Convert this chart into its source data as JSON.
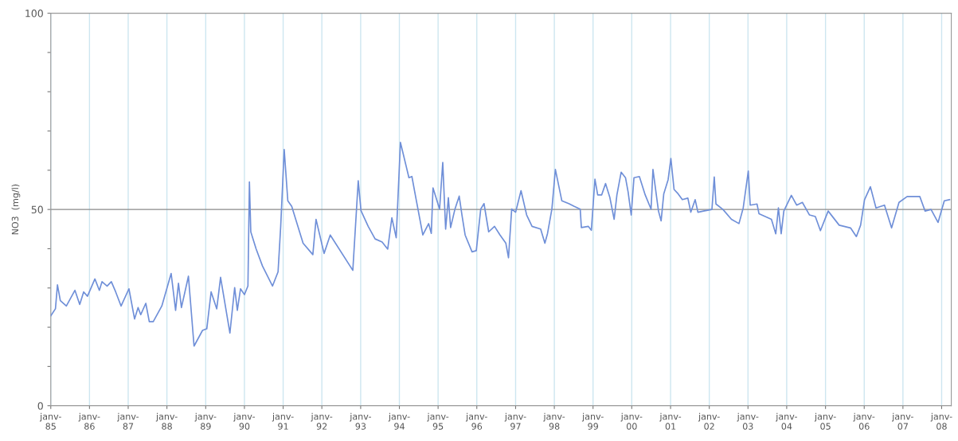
{
  "chart_data": {
    "type": "line",
    "ylabel": "NO3  (mg/l)",
    "xlim": [
      "1985-01-01",
      "2008-04-01"
    ],
    "ylim": [
      0,
      100
    ],
    "xticks": [
      {
        "value": "1985-01",
        "label": "janv-\n85"
      },
      {
        "value": "1986-01",
        "label": "janv-\n86"
      },
      {
        "value": "1987-01",
        "label": "janv-\n87"
      },
      {
        "value": "1988-01",
        "label": "janv-\n88"
      },
      {
        "value": "1989-01",
        "label": "janv-\n89"
      },
      {
        "value": "1990-01",
        "label": "janv-\n90"
      },
      {
        "value": "1991-01",
        "label": "janv-\n91"
      },
      {
        "value": "1992-01",
        "label": "janv-\n92"
      },
      {
        "value": "1993-01",
        "label": "janv-\n93"
      },
      {
        "value": "1994-01",
        "label": "janv-\n94"
      },
      {
        "value": "1995-01",
        "label": "janv-\n95"
      },
      {
        "value": "1996-01",
        "label": "janv-\n96"
      },
      {
        "value": "1997-01",
        "label": "janv-\n97"
      },
      {
        "value": "1998-01",
        "label": "janv-\n98"
      },
      {
        "value": "1999-01",
        "label": "janv-\n99"
      },
      {
        "value": "2000-01",
        "label": "janv-\n00"
      },
      {
        "value": "2001-01",
        "label": "janv-\n01"
      },
      {
        "value": "2002-01",
        "label": "janv-\n02"
      },
      {
        "value": "2003-01",
        "label": "janv-\n03"
      },
      {
        "value": "2004-01",
        "label": "janv-\n04"
      },
      {
        "value": "2005-01",
        "label": "janv-\n05"
      },
      {
        "value": "2006-01",
        "label": "janv-\n06"
      },
      {
        "value": "2007-01",
        "label": "janv-\n07"
      },
      {
        "value": "2008-01",
        "label": "janv-\n08"
      }
    ],
    "yticks": [
      0,
      {
        "value": 10,
        "label": null
      },
      {
        "value": 20,
        "label": null
      },
      {
        "value": 30,
        "label": null
      },
      {
        "value": 40,
        "label": null
      },
      50,
      {
        "value": 60,
        "label": null
      },
      {
        "value": 70,
        "label": null
      },
      {
        "value": 80,
        "label": null
      },
      {
        "value": 90,
        "label": null
      },
      100
    ],
    "grid": "x",
    "legend": false,
    "marker": "none",
    "line_style": "solid",
    "ref_lines": [
      {
        "axis": "y",
        "value": 50,
        "color": "#8a8a8a"
      }
    ],
    "series": [
      {
        "color": "#6f8fd8",
        "x": [
          "1985-01-01",
          "1985-02-14",
          "1985-03-05",
          "1985-04-01",
          "1985-05-28",
          "1985-08-17",
          "1985-10-01",
          "1985-11-07",
          "1985-12-13",
          "1986-02-21",
          "1986-04-04",
          "1986-04-29",
          "1986-06-16",
          "1986-07-26",
          "1986-09-05",
          "1986-10-26",
          "1987-01-08",
          "1987-03-02",
          "1987-04-04",
          "1987-04-29",
          "1987-06-16",
          "1987-07-19",
          "1987-08-25",
          "1987-11-14",
          "1988-02-10",
          "1988-03-23",
          "1988-04-19",
          "1988-05-17",
          "1988-07-22",
          "1988-09-13",
          "1988-12-02",
          "1989-01-11",
          "1989-02-21",
          "1989-04-15",
          "1989-05-21",
          "1989-08-17",
          "1989-10-01",
          "1989-10-26",
          "1989-11-25",
          "1990-01-01",
          "1990-02-03",
          "1990-02-17",
          "1990-03-02",
          "1990-04-22",
          "1990-06-20",
          "1990-09-23",
          "1990-11-14",
          "1990-12-09",
          "1991-01-11",
          "1991-02-14",
          "1991-03-23",
          "1991-05-03",
          "1991-07-08",
          "1991-10-08",
          "1991-11-07",
          "1992-01-22",
          "1992-03-20",
          "1992-10-19",
          "1992-12-09",
          "1993-01-04",
          "1993-03-13",
          "1993-05-17",
          "1993-07-22",
          "1993-09-13",
          "1993-10-22",
          "1993-12-02",
          "1994-01-11",
          "1994-04-01",
          "1994-04-29",
          "1994-06-05",
          "1994-08-10",
          "1994-10-04",
          "1994-10-29",
          "1994-11-14",
          "1995-01-15",
          "1995-02-14",
          "1995-03-13",
          "1995-04-08",
          "1995-04-29",
          "1995-06-09",
          "1995-07-19",
          "1995-08-14",
          "1995-09-13",
          "1995-11-17",
          "1995-12-27",
          "1996-02-07",
          "1996-03-09",
          "1996-04-22",
          "1996-06-16",
          "1996-08-07",
          "1996-10-01",
          "1996-10-26",
          "1996-11-25",
          "1997-01-01",
          "1997-02-21",
          "1997-04-15",
          "1997-06-05",
          "1997-08-25",
          "1997-10-04",
          "1997-10-29",
          "1997-12-09",
          "1998-01-11",
          "1998-03-13",
          "1998-05-17",
          "1998-07-08",
          "1998-09-02",
          "1998-09-13",
          "1998-11-17",
          "1998-12-16",
          "1999-01-19",
          "1999-02-14",
          "1999-03-23",
          "1999-04-29",
          "1999-06-09",
          "1999-07-19",
          "1999-08-14",
          "1999-09-23",
          "1999-11-03",
          "1999-11-28",
          "1999-12-27",
          "2000-01-22",
          "2000-03-13",
          "2000-05-07",
          "2000-07-01",
          "2000-07-19",
          "2000-09-09",
          "2000-10-04",
          "2000-10-29",
          "2000-12-09",
          "2001-01-04",
          "2001-02-03",
          "2001-03-13",
          "2001-04-22",
          "2001-06-13",
          "2001-07-11",
          "2001-08-21",
          "2001-09-16",
          "2001-11-07",
          "2002-01-26",
          "2002-02-17",
          "2002-03-05",
          "2002-05-10",
          "2002-07-29",
          "2002-10-08",
          "2002-11-17",
          "2003-01-04",
          "2003-01-22",
          "2003-03-27",
          "2003-04-15",
          "2003-08-10",
          "2003-09-20",
          "2003-10-15",
          "2003-11-10",
          "2003-12-05",
          "2004-02-14",
          "2004-04-04",
          "2004-05-28",
          "2004-08-03",
          "2004-09-27",
          "2004-11-14",
          "2005-01-26",
          "2005-05-10",
          "2005-08-25",
          "2005-10-19",
          "2005-11-28",
          "2006-01-04",
          "2006-02-28",
          "2006-04-22",
          "2006-07-11",
          "2006-09-16",
          "2006-11-25",
          "2007-02-10",
          "2007-06-09",
          "2007-07-29",
          "2007-09-23",
          "2007-11-28",
          "2008-01-26",
          "2008-03-16"
        ],
        "values": [
          22.9,
          24.7,
          30.8,
          26.8,
          25.4,
          29.4,
          25.8,
          29,
          27.9,
          32.3,
          29.4,
          31.6,
          30.5,
          31.6,
          29,
          25.4,
          29.8,
          22.1,
          25,
          23.2,
          26.1,
          21.4,
          21.4,
          25.4,
          33.7,
          24.3,
          31.2,
          25,
          33,
          15.2,
          19.2,
          19.6,
          29,
          24.7,
          32.7,
          18.5,
          30.1,
          24.3,
          29.8,
          28.3,
          30.5,
          57,
          44.3,
          39.9,
          35.6,
          30.5,
          34.1,
          45.7,
          65.3,
          52.2,
          50.8,
          47.2,
          41.4,
          38.5,
          47.5,
          38.8,
          43.5,
          34.5,
          57.3,
          49.7,
          45.7,
          42.5,
          41.7,
          39.9,
          47.9,
          42.8,
          67.1,
          58.1,
          58.4,
          53,
          43.5,
          46.4,
          43.9,
          55.5,
          50.1,
          62,
          45,
          53,
          45.4,
          50.1,
          53.4,
          48.6,
          43.5,
          39.2,
          39.5,
          50.1,
          51.5,
          44.3,
          45.7,
          43.5,
          41.4,
          37.7,
          50.1,
          49.3,
          54.8,
          48.6,
          45.7,
          45,
          41.4,
          43.9,
          50.1,
          60.2,
          52.2,
          51.5,
          50.8,
          50.1,
          45.4,
          45.7,
          44.7,
          57.7,
          53.7,
          53.7,
          56.6,
          53,
          47.5,
          53.7,
          59.5,
          58.1,
          54.4,
          48.6,
          58.1,
          58.4,
          53.7,
          50.1,
          60.2,
          49.6,
          47.1,
          54,
          57.6,
          63,
          55.1,
          54,
          52.5,
          52.9,
          49.3,
          52.5,
          49.3,
          49.6,
          50,
          58.3,
          51.4,
          50,
          47.5,
          46.4,
          50.4,
          59.8,
          51.1,
          51.4,
          48.9,
          47.5,
          43.8,
          50.4,
          43.8,
          49.6,
          53.6,
          51.1,
          51.8,
          48.6,
          48.2,
          44.6,
          49.6,
          46,
          45.3,
          43.1,
          46,
          52.5,
          55.8,
          50.4,
          51.1,
          45.3,
          51.8,
          53.3,
          53.3,
          49.6,
          50,
          46.7,
          52.2,
          52.5
        ]
      }
    ]
  }
}
